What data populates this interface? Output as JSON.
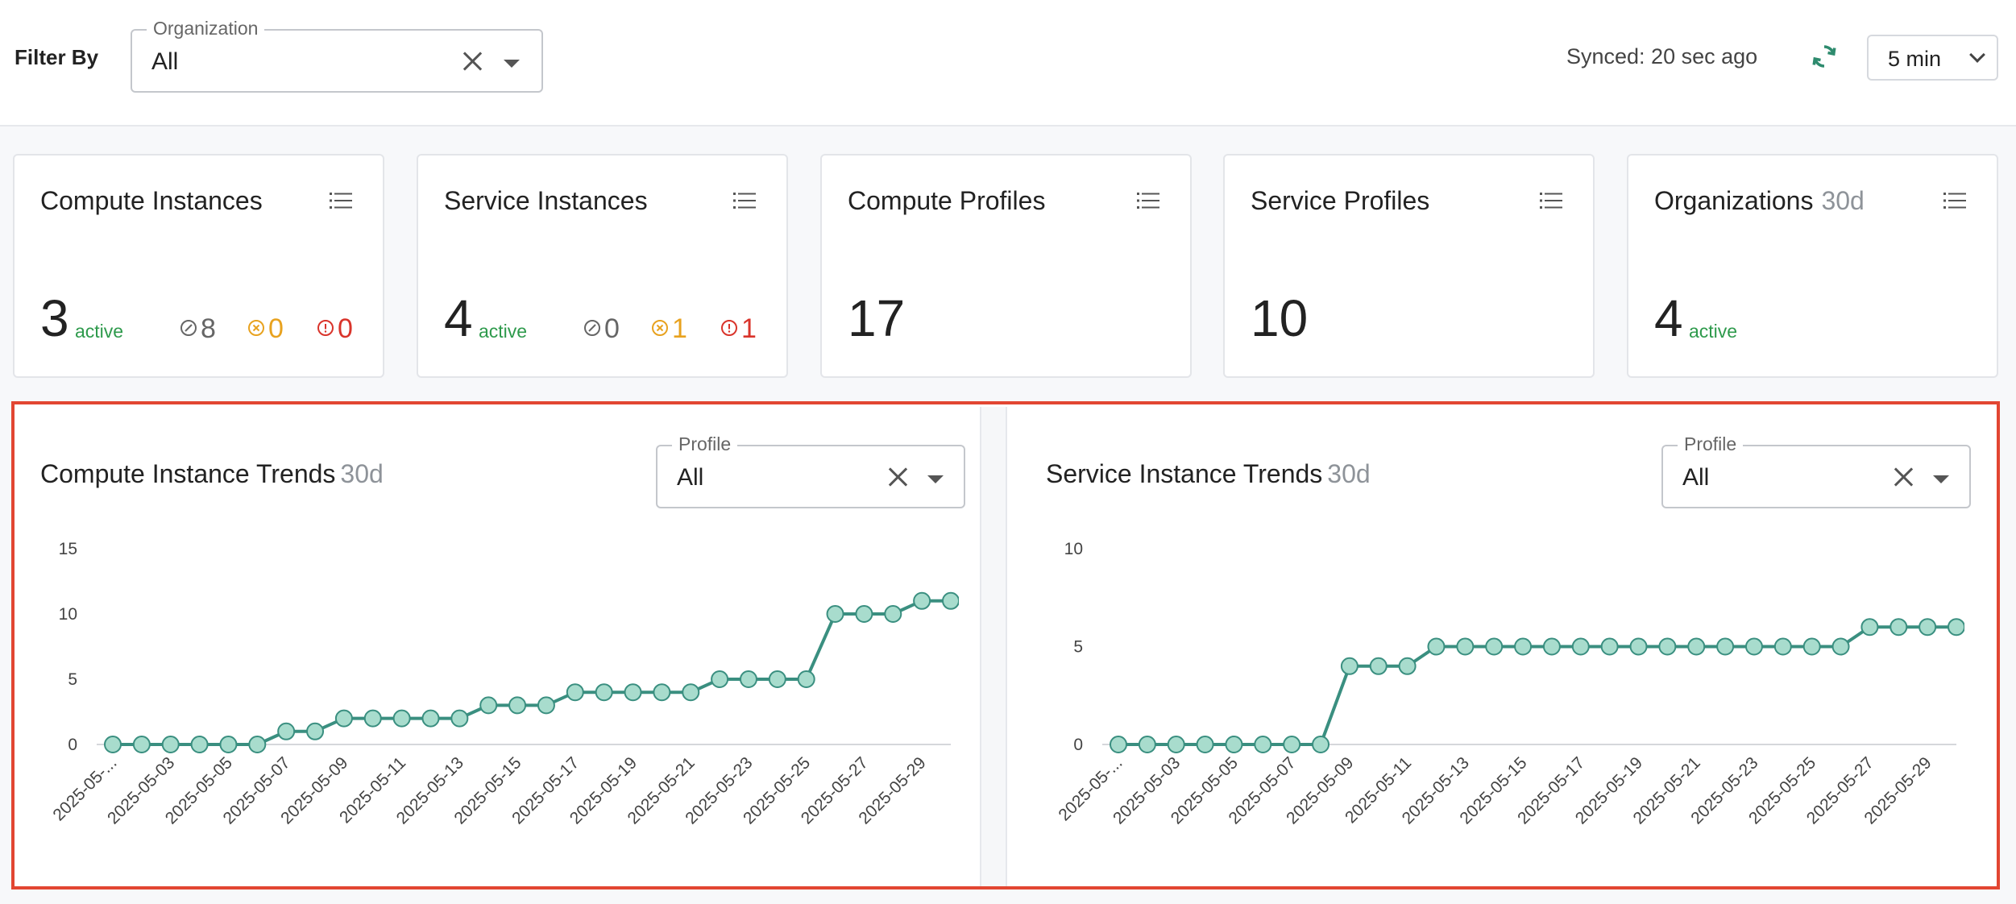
{
  "filter": {
    "label": "Filter By",
    "organization_legend": "Organization",
    "organization_value": "All"
  },
  "sync": {
    "text": "Synced: 20 sec ago",
    "interval": "5 min",
    "accent_color": "#2e8b6e"
  },
  "cards": [
    {
      "title": "Compute Instances",
      "count": "3",
      "active_label": "active",
      "stopped": "8",
      "warning": "0",
      "error": "0"
    },
    {
      "title": "Service Instances",
      "count": "4",
      "active_label": "active",
      "stopped": "0",
      "warning": "1",
      "error": "1"
    },
    {
      "title": "Compute Profiles",
      "count": "17"
    },
    {
      "title": "Service Profiles",
      "count": "10"
    },
    {
      "title": "Organizations",
      "title_suffix": "30d",
      "count": "4",
      "active_label": "active"
    }
  ],
  "panels": [
    {
      "title": "Compute Instance Trends",
      "suffix": "30d",
      "profile_legend": "Profile",
      "profile_value": "All"
    },
    {
      "title": "Service Instance Trends",
      "suffix": "30d",
      "profile_legend": "Profile",
      "profile_value": "All"
    }
  ],
  "chart_data": [
    {
      "type": "line",
      "title": "Compute Instance Trends",
      "x_tick_labels": [
        "2025-05-...",
        "2025-05-03",
        "2025-05-05",
        "2025-05-07",
        "2025-05-09",
        "2025-05-11",
        "2025-05-13",
        "2025-05-15",
        "2025-05-17",
        "2025-05-19",
        "2025-05-21",
        "2025-05-23",
        "2025-05-25",
        "2025-05-27",
        "2025-05-29"
      ],
      "values": [
        0,
        0,
        0,
        0,
        0,
        0,
        1,
        1,
        2,
        2,
        2,
        2,
        2,
        3,
        3,
        3,
        4,
        4,
        4,
        4,
        4,
        5,
        5,
        5,
        5,
        10,
        10,
        10,
        11,
        11
      ],
      "ylim": [
        0,
        15
      ],
      "yticks": [
        0,
        5,
        10,
        15
      ],
      "line_color": "#3a8f80",
      "marker_color": "#a8dccd"
    },
    {
      "type": "line",
      "title": "Service Instance Trends",
      "x_tick_labels": [
        "2025-05-...",
        "2025-05-03",
        "2025-05-05",
        "2025-05-07",
        "2025-05-09",
        "2025-05-11",
        "2025-05-13",
        "2025-05-15",
        "2025-05-17",
        "2025-05-19",
        "2025-05-21",
        "2025-05-23",
        "2025-05-25",
        "2025-05-27",
        "2025-05-29"
      ],
      "values": [
        0,
        0,
        0,
        0,
        0,
        0,
        0,
        0,
        4,
        4,
        4,
        5,
        5,
        5,
        5,
        5,
        5,
        5,
        5,
        5,
        5,
        5,
        5,
        5,
        5,
        5,
        6,
        6,
        6,
        6
      ],
      "ylim": [
        0,
        10
      ],
      "yticks": [
        0,
        5,
        10
      ],
      "line_color": "#3a8f80",
      "marker_color": "#a8dccd"
    }
  ]
}
